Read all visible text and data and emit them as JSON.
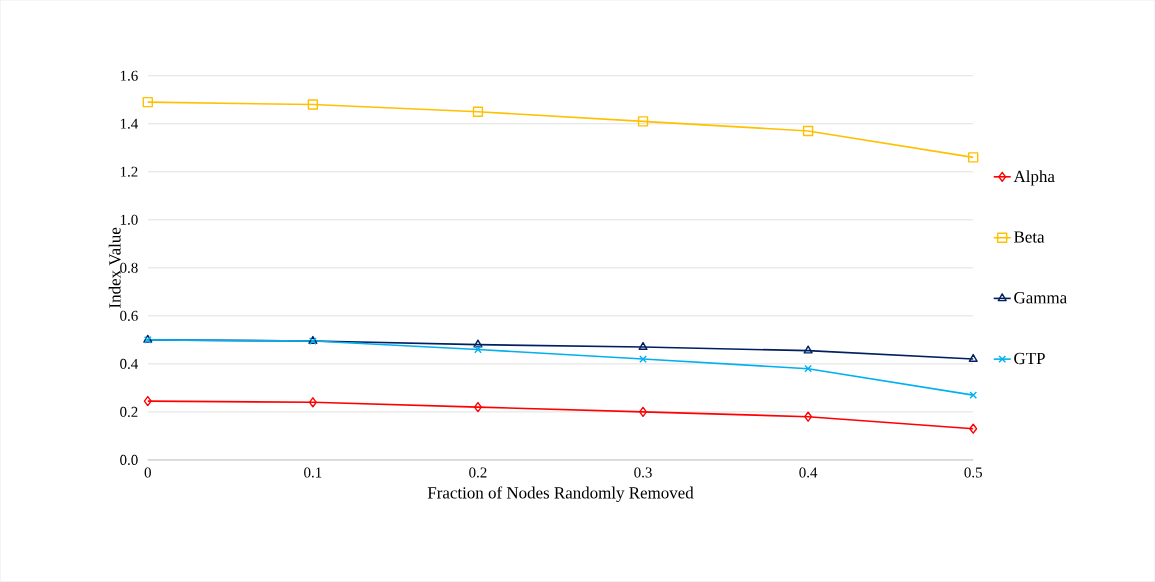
{
  "chart_data": {
    "type": "line",
    "xlabel": "Fraction of Nodes Randomly Removed",
    "ylabel": "Index Value",
    "x": [
      0,
      0.1,
      0.2,
      0.3,
      0.4,
      0.5
    ],
    "series": [
      {
        "name": "Alpha",
        "color": "#ff0000",
        "marker": "diamond",
        "values": [
          0.245,
          0.24,
          0.22,
          0.2,
          0.18,
          0.13
        ]
      },
      {
        "name": "Beta",
        "color": "#ffc000",
        "marker": "square",
        "values": [
          1.49,
          1.48,
          1.45,
          1.41,
          1.37,
          1.26
        ]
      },
      {
        "name": "Gamma",
        "color": "#002060",
        "marker": "triangle",
        "values": [
          0.5,
          0.495,
          0.48,
          0.47,
          0.455,
          0.42
        ]
      },
      {
        "name": "GTP",
        "color": "#00b0f0",
        "marker": "cross",
        "values": [
          0.5,
          0.495,
          0.46,
          0.42,
          0.38,
          0.27
        ]
      }
    ],
    "xlim": [
      0,
      0.5
    ],
    "xticks": [
      0,
      0.1,
      0.2,
      0.3,
      0.4,
      0.5
    ],
    "ylim": [
      0,
      1.6
    ],
    "yticks": [
      {
        "value": 0,
        "label": "0.0"
      },
      0.2,
      0.4,
      0.6,
      0.8,
      {
        "value": 1,
        "label": "1.0"
      },
      1.2,
      1.4,
      1.6
    ],
    "grid": "y",
    "legend": "right",
    "line_style": "solid"
  }
}
